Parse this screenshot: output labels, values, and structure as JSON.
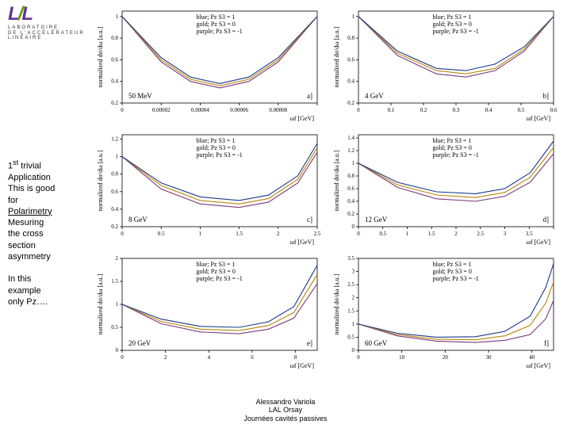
{
  "logo": {
    "text": "LAL",
    "sub1": "LABORATOIRE",
    "sub2": "DE L'ACCÉLÉRATEUR",
    "sub3": "LINÉAIRE"
  },
  "sidebar": {
    "para1_l1": "1",
    "para1_sup": "st",
    "para1_rest": " trivial",
    "para1_l2": "Application",
    "para1_l3": "This is good",
    "para1_l4": "for",
    "para1_l5": "Polarimetry",
    "para1_l6": "Mesuring",
    "para1_l7": "the cross",
    "para1_l8": "section",
    "para1_l9": "asymmetry",
    "para2_l1": "In this",
    "para2_l2": "example",
    "para2_l3": "only Pz…."
  },
  "chart_common": {
    "ylabel": "normalized dσ/dω [a.u.]",
    "xlabel": "ωf [GeV]",
    "legend1": "blue; Pz S3 = 1",
    "legend2": "gold; Pz S3 = 0",
    "legend3": "purple; Pz S3 = -1",
    "colors": {
      "blue": "#1a3a8a",
      "gold": "#b8860b",
      "purple": "#7a3a7a",
      "axis": "#000000",
      "tick_font": 7,
      "label_font": 8,
      "legend_font": 8
    }
  },
  "charts": [
    {
      "panel": "a]",
      "energy": "50 MeV",
      "xlim": [
        0,
        0.0001
      ],
      "xticks": [
        0,
        2e-05,
        4e-05,
        6e-05,
        8e-05,
        0.0001
      ],
      "xticklabels": [
        "0",
        "0.00002",
        "0.00004",
        "0.00006",
        "0.00008",
        ""
      ],
      "ylim": [
        0.2,
        1.05
      ],
      "yticks": [
        0.2,
        0.4,
        0.6,
        0.8,
        1.0
      ],
      "series": {
        "blue": [
          [
            0,
            1.0
          ],
          [
            0.2,
            0.62
          ],
          [
            0.35,
            0.44
          ],
          [
            0.5,
            0.38
          ],
          [
            0.65,
            0.44
          ],
          [
            0.8,
            0.62
          ],
          [
            1.0,
            1.0
          ]
        ],
        "gold": [
          [
            0,
            1.0
          ],
          [
            0.2,
            0.6
          ],
          [
            0.35,
            0.42
          ],
          [
            0.5,
            0.36
          ],
          [
            0.65,
            0.42
          ],
          [
            0.8,
            0.6
          ],
          [
            1.0,
            1.0
          ]
        ],
        "purple": [
          [
            0,
            1.0
          ],
          [
            0.2,
            0.58
          ],
          [
            0.35,
            0.4
          ],
          [
            0.5,
            0.34
          ],
          [
            0.65,
            0.4
          ],
          [
            0.8,
            0.58
          ],
          [
            1.0,
            1.0
          ]
        ]
      }
    },
    {
      "panel": "b]",
      "energy": "4 GeV",
      "xlim": [
        0,
        0.6
      ],
      "xticks": [
        0,
        0.1,
        0.2,
        0.3,
        0.4,
        0.5,
        0.6
      ],
      "xticklabels": [
        "0",
        "0.1",
        "0.2",
        "0.3",
        "0.4",
        "0.5",
        "0.6"
      ],
      "ylim": [
        0.2,
        1.05
      ],
      "yticks": [
        0.2,
        0.4,
        0.6,
        0.8,
        1.0
      ],
      "series": {
        "blue": [
          [
            0,
            1.0
          ],
          [
            0.2,
            0.68
          ],
          [
            0.4,
            0.52
          ],
          [
            0.55,
            0.5
          ],
          [
            0.7,
            0.56
          ],
          [
            0.85,
            0.72
          ],
          [
            1.0,
            1.0
          ]
        ],
        "gold": [
          [
            0,
            1.0
          ],
          [
            0.2,
            0.66
          ],
          [
            0.4,
            0.5
          ],
          [
            0.55,
            0.47
          ],
          [
            0.7,
            0.52
          ],
          [
            0.85,
            0.7
          ],
          [
            1.0,
            1.0
          ]
        ],
        "purple": [
          [
            0,
            1.0
          ],
          [
            0.2,
            0.64
          ],
          [
            0.4,
            0.47
          ],
          [
            0.55,
            0.44
          ],
          [
            0.7,
            0.5
          ],
          [
            0.85,
            0.68
          ],
          [
            1.0,
            1.0
          ]
        ]
      }
    },
    {
      "panel": "c]",
      "energy": "8 GeV",
      "xlim": [
        0,
        2.5
      ],
      "xticks": [
        0,
        0.5,
        1.0,
        1.5,
        2.0,
        2.5
      ],
      "xticklabels": [
        "0",
        "0.5",
        "1",
        "1.5",
        "2",
        "2.5"
      ],
      "ylim": [
        0.2,
        1.25
      ],
      "yticks": [
        0.2,
        0.4,
        0.6,
        0.8,
        1.0,
        1.2
      ],
      "series": {
        "blue": [
          [
            0,
            1.0
          ],
          [
            0.2,
            0.7
          ],
          [
            0.4,
            0.54
          ],
          [
            0.6,
            0.5
          ],
          [
            0.75,
            0.56
          ],
          [
            0.9,
            0.78
          ],
          [
            1.0,
            1.15
          ]
        ],
        "gold": [
          [
            0,
            1.0
          ],
          [
            0.2,
            0.67
          ],
          [
            0.4,
            0.5
          ],
          [
            0.6,
            0.46
          ],
          [
            0.75,
            0.52
          ],
          [
            0.9,
            0.74
          ],
          [
            1.0,
            1.1
          ]
        ],
        "purple": [
          [
            0,
            1.0
          ],
          [
            0.2,
            0.63
          ],
          [
            0.4,
            0.46
          ],
          [
            0.6,
            0.42
          ],
          [
            0.75,
            0.48
          ],
          [
            0.9,
            0.7
          ],
          [
            1.0,
            1.05
          ]
        ]
      }
    },
    {
      "panel": "d]",
      "energy": "12 GeV",
      "xlim": [
        0,
        4.0
      ],
      "xticks": [
        0,
        0.5,
        1.0,
        1.5,
        2.0,
        2.5,
        3.0,
        3.5,
        4.0
      ],
      "xticklabels": [
        "0",
        "0.5",
        "1",
        "1.5",
        "2",
        "2.5",
        "3",
        "3.5"
      ],
      "ylim": [
        0,
        1.45
      ],
      "yticks": [
        0,
        0.2,
        0.4,
        0.6,
        0.8,
        1.0,
        1.2,
        1.4
      ],
      "series": {
        "blue": [
          [
            0,
            1.0
          ],
          [
            0.2,
            0.7
          ],
          [
            0.4,
            0.55
          ],
          [
            0.6,
            0.52
          ],
          [
            0.75,
            0.6
          ],
          [
            0.88,
            0.85
          ],
          [
            1.0,
            1.35
          ]
        ],
        "gold": [
          [
            0,
            1.0
          ],
          [
            0.2,
            0.66
          ],
          [
            0.4,
            0.5
          ],
          [
            0.6,
            0.46
          ],
          [
            0.75,
            0.54
          ],
          [
            0.88,
            0.78
          ],
          [
            1.0,
            1.25
          ]
        ],
        "purple": [
          [
            0,
            1.0
          ],
          [
            0.2,
            0.62
          ],
          [
            0.4,
            0.44
          ],
          [
            0.6,
            0.4
          ],
          [
            0.75,
            0.48
          ],
          [
            0.88,
            0.7
          ],
          [
            1.0,
            1.15
          ]
        ]
      }
    },
    {
      "panel": "e]",
      "energy": "20 GeV",
      "xlim": [
        0,
        9
      ],
      "xticks": [
        0,
        2,
        4,
        6,
        8
      ],
      "xticklabels": [
        "0",
        "2",
        "4",
        "6",
        "8"
      ],
      "ylim": [
        0,
        2.0
      ],
      "yticks": [
        0,
        0.5,
        1.0,
        1.5,
        2.0
      ],
      "series": {
        "blue": [
          [
            0,
            1.0
          ],
          [
            0.2,
            0.68
          ],
          [
            0.4,
            0.52
          ],
          [
            0.6,
            0.5
          ],
          [
            0.75,
            0.62
          ],
          [
            0.88,
            0.95
          ],
          [
            1.0,
            1.85
          ]
        ],
        "gold": [
          [
            0,
            1.0
          ],
          [
            0.2,
            0.63
          ],
          [
            0.4,
            0.46
          ],
          [
            0.6,
            0.43
          ],
          [
            0.75,
            0.54
          ],
          [
            0.88,
            0.82
          ],
          [
            1.0,
            1.65
          ]
        ],
        "purple": [
          [
            0,
            1.0
          ],
          [
            0.2,
            0.58
          ],
          [
            0.4,
            0.4
          ],
          [
            0.6,
            0.36
          ],
          [
            0.75,
            0.46
          ],
          [
            0.88,
            0.7
          ],
          [
            1.0,
            1.45
          ]
        ]
      }
    },
    {
      "panel": "f]",
      "energy": "60 GeV",
      "xlim": [
        0,
        45
      ],
      "xticks": [
        0,
        10,
        20,
        30,
        40
      ],
      "xticklabels": [
        "0",
        "10",
        "20",
        "30",
        "40"
      ],
      "ylim": [
        0,
        3.5
      ],
      "yticks": [
        0,
        0.5,
        1.0,
        1.5,
        2.0,
        2.5,
        3.0,
        3.5
      ],
      "series": {
        "blue": [
          [
            0,
            1.0
          ],
          [
            0.2,
            0.65
          ],
          [
            0.4,
            0.5
          ],
          [
            0.6,
            0.52
          ],
          [
            0.75,
            0.72
          ],
          [
            0.88,
            1.3
          ],
          [
            0.96,
            2.4
          ],
          [
            1.0,
            3.3
          ]
        ],
        "gold": [
          [
            0,
            1.0
          ],
          [
            0.2,
            0.6
          ],
          [
            0.4,
            0.42
          ],
          [
            0.6,
            0.4
          ],
          [
            0.75,
            0.55
          ],
          [
            0.88,
            0.95
          ],
          [
            0.96,
            1.8
          ],
          [
            1.0,
            2.6
          ]
        ],
        "purple": [
          [
            0,
            1.0
          ],
          [
            0.2,
            0.55
          ],
          [
            0.4,
            0.35
          ],
          [
            0.6,
            0.3
          ],
          [
            0.75,
            0.38
          ],
          [
            0.88,
            0.6
          ],
          [
            0.96,
            1.2
          ],
          [
            1.0,
            1.9
          ]
        ]
      }
    }
  ],
  "footer": {
    "l1": "Alessandro Variola",
    "l2": "LAL Orsay",
    "l3": "Journées cavités passives"
  }
}
